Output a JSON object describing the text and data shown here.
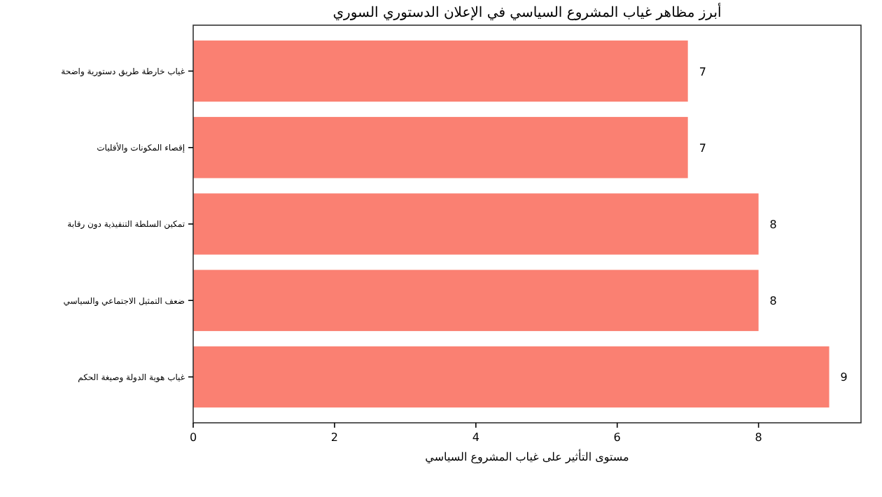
{
  "chart_data": {
    "type": "bar",
    "orientation": "horizontal",
    "title": "أبرز مظاهر غياب المشروع السياسي في الإعلان الدستوري السوري",
    "xlabel": "مستوى التأثير على غياب المشروع السياسي",
    "categories": [
      "غياب خارطة طريق دستورية واضحة",
      "إقصاء المكونات والأقليات",
      "تمكين السلطة التنفيذية دون رقابة",
      "ضعف التمثيل الاجتماعي والسياسي",
      "غياب هوية الدولة وصيغة الحكم"
    ],
    "values": [
      7,
      7,
      8,
      8,
      9
    ],
    "color": "#fa8072",
    "xlim": [
      0,
      9.45
    ],
    "xticks": [
      0,
      2,
      4,
      6,
      8
    ],
    "data_labels": true
  }
}
